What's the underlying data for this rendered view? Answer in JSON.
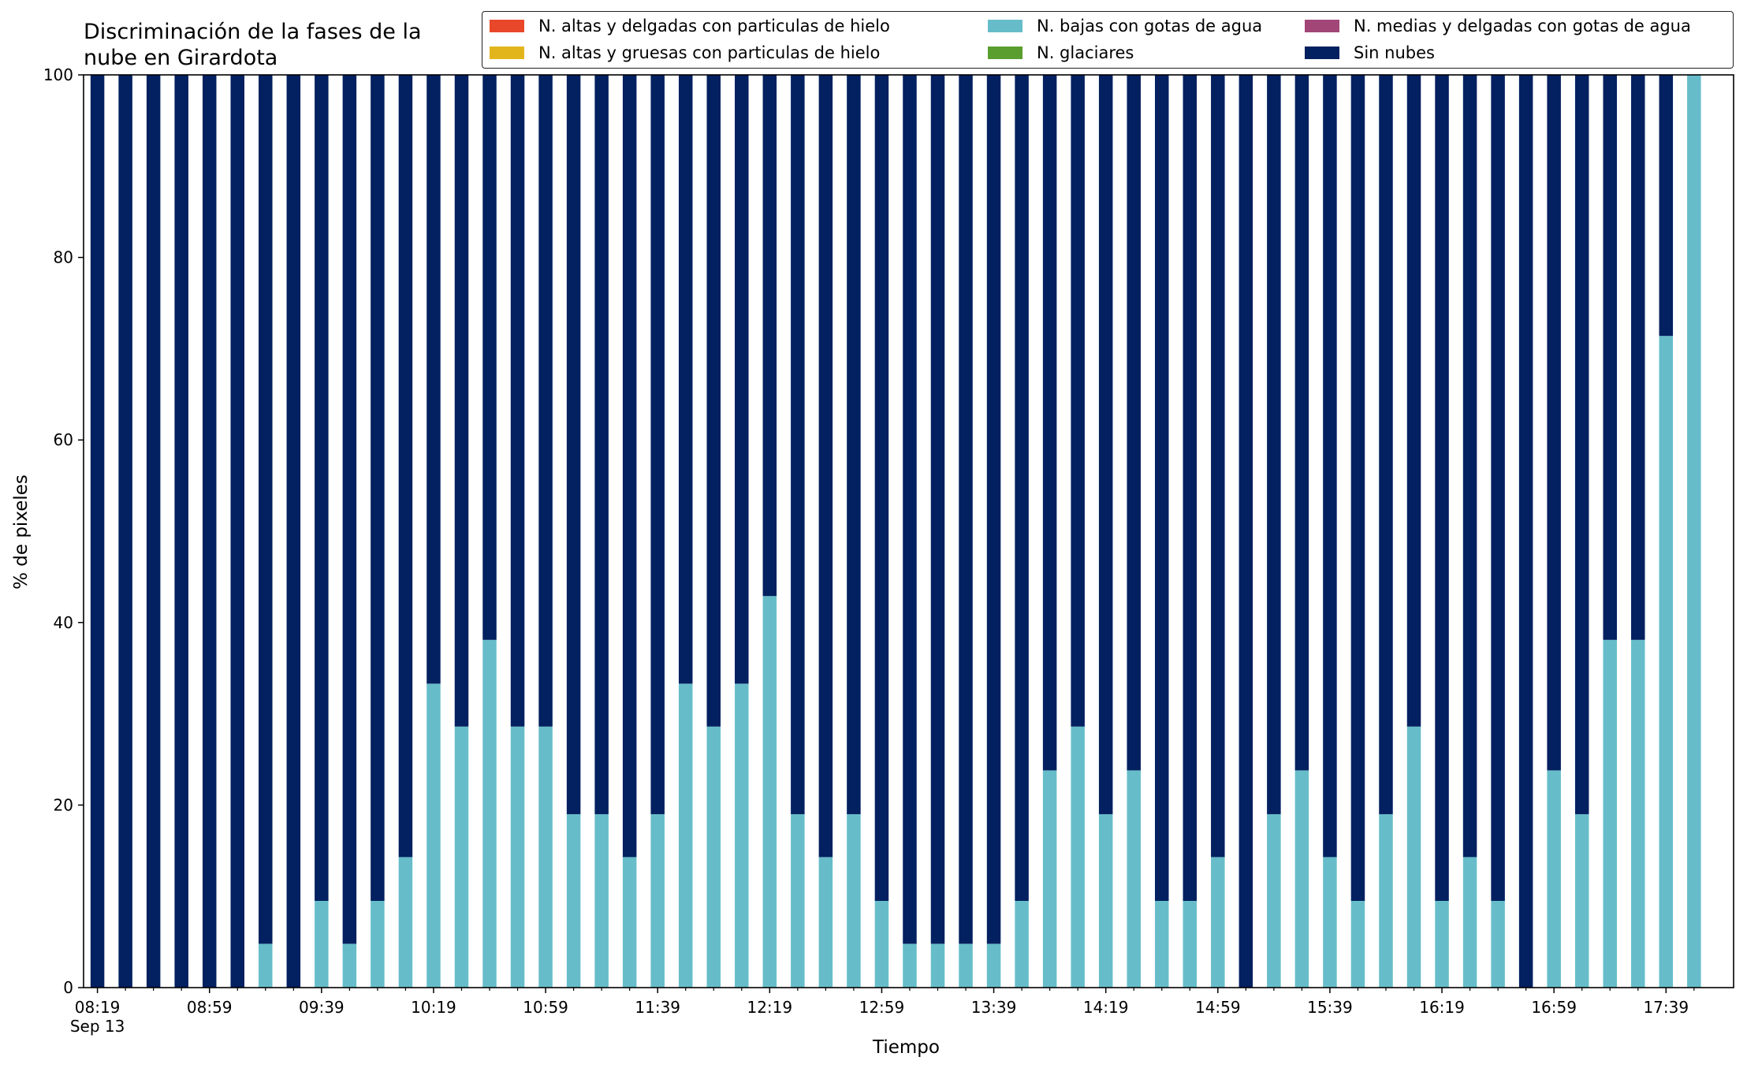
{
  "chart_data": {
    "type": "bar",
    "stacked": true,
    "title": "Discriminación de la fases de la nube en Girardota",
    "title_lines": [
      "Discriminación de la fases de la",
      "nube en Girardota"
    ],
    "xlabel": "Tiempo",
    "ylabel": "% de pixeles",
    "ylim": [
      0,
      100
    ],
    "yticks": [
      0,
      20,
      40,
      60,
      80,
      100
    ],
    "x_tick_labels": [
      {
        "index": 0,
        "label": "08:19",
        "sublabel": "Sep 13"
      },
      {
        "index": 4,
        "label": "08:59"
      },
      {
        "index": 8,
        "label": "09:39"
      },
      {
        "index": 12,
        "label": "10:19"
      },
      {
        "index": 16,
        "label": "10:59"
      },
      {
        "index": 20,
        "label": "11:39"
      },
      {
        "index": 24,
        "label": "12:19"
      },
      {
        "index": 28,
        "label": "12:59"
      },
      {
        "index": 32,
        "label": "13:39"
      },
      {
        "index": 36,
        "label": "14:19"
      },
      {
        "index": 40,
        "label": "14:59"
      },
      {
        "index": 44,
        "label": "15:39"
      },
      {
        "index": 48,
        "label": "16:19"
      },
      {
        "index": 52,
        "label": "16:59"
      },
      {
        "index": 56,
        "label": "17:39"
      }
    ],
    "categories": [
      "08:19",
      "08:29",
      "08:39",
      "08:49",
      "08:59",
      "09:09",
      "09:19",
      "09:29",
      "09:39",
      "09:49",
      "09:59",
      "10:09",
      "10:19",
      "10:29",
      "10:39",
      "10:49",
      "10:59",
      "11:09",
      "11:19",
      "11:29",
      "11:39",
      "11:49",
      "11:59",
      "12:09",
      "12:19",
      "12:29",
      "12:39",
      "12:49",
      "12:59",
      "13:09",
      "13:19",
      "13:29",
      "13:39",
      "13:49",
      "13:59",
      "14:09",
      "14:19",
      "14:29",
      "14:39",
      "14:49",
      "14:59",
      "15:09",
      "15:19",
      "15:29",
      "15:39",
      "15:49",
      "15:59",
      "16:09",
      "16:19",
      "16:29",
      "16:39",
      "16:49",
      "16:59",
      "17:09",
      "17:19",
      "17:29",
      "17:39",
      "17:49"
    ],
    "legend_position": "top-right",
    "series": [
      {
        "name": "N. altas y delgadas con particulas de hielo",
        "color": "#e8472a",
        "values": [
          0,
          0,
          0,
          0,
          0,
          0,
          0,
          0,
          0,
          0,
          0,
          0,
          0,
          0,
          0,
          0,
          0,
          0,
          0,
          0,
          0,
          0,
          0,
          0,
          0,
          0,
          0,
          0,
          0,
          0,
          0,
          0,
          0,
          0,
          0,
          0,
          0,
          0,
          0,
          0,
          0,
          0,
          0,
          0,
          0,
          0,
          0,
          0,
          0,
          0,
          0,
          0,
          0,
          0,
          0,
          0,
          0,
          0
        ]
      },
      {
        "name": "N. altas y gruesas con particulas de hielo",
        "color": "#e3b51c",
        "values": [
          0,
          0,
          0,
          0,
          0,
          0,
          0,
          0,
          0,
          0,
          0,
          0,
          0,
          0,
          0,
          0,
          0,
          0,
          0,
          0,
          0,
          0,
          0,
          0,
          0,
          0,
          0,
          0,
          0,
          0,
          0,
          0,
          0,
          0,
          0,
          0,
          0,
          0,
          0,
          0,
          0,
          0,
          0,
          0,
          0,
          0,
          0,
          0,
          0,
          0,
          0,
          0,
          0,
          0,
          0,
          0,
          0,
          0
        ]
      },
      {
        "name": "N. bajas con gotas de agua",
        "color": "#66bdc9",
        "values": [
          0,
          0,
          0,
          0,
          0,
          0,
          4.8,
          0,
          9.5,
          4.8,
          9.5,
          14.3,
          33.3,
          28.6,
          38.1,
          28.6,
          28.6,
          19.0,
          19.0,
          14.3,
          19.0,
          33.3,
          28.6,
          33.3,
          42.9,
          19.0,
          14.3,
          19.0,
          9.5,
          4.8,
          4.8,
          4.8,
          4.8,
          9.5,
          23.8,
          28.6,
          19.0,
          23.8,
          9.5,
          9.5,
          14.3,
          0,
          19.0,
          23.8,
          14.3,
          9.5,
          19.0,
          28.6,
          9.5,
          14.3,
          9.5,
          0,
          23.8,
          19.0,
          38.1,
          38.1,
          71.4,
          100
        ]
      },
      {
        "name": "N. glaciares",
        "color": "#5a9e2f",
        "values": [
          0,
          0,
          0,
          0,
          0,
          0,
          0,
          0,
          0,
          0,
          0,
          0,
          0,
          0,
          0,
          0,
          0,
          0,
          0,
          0,
          0,
          0,
          0,
          0,
          0,
          0,
          0,
          0,
          0,
          0,
          0,
          0,
          0,
          0,
          0,
          0,
          0,
          0,
          0,
          0,
          0,
          0,
          0,
          0,
          0,
          0,
          0,
          0,
          0,
          0,
          0,
          0,
          0,
          0,
          0,
          0,
          0,
          0
        ]
      },
      {
        "name": "N. medias y delgadas con gotas de agua",
        "color": "#a24577",
        "values": [
          0,
          0,
          0,
          0,
          0,
          0,
          0,
          0,
          0,
          0,
          0,
          0,
          0,
          0,
          0,
          0,
          0,
          0,
          0,
          0,
          0,
          0,
          0,
          0,
          0,
          0,
          0,
          0,
          0,
          0,
          0,
          0,
          0,
          0,
          0,
          0,
          0,
          0,
          0,
          0,
          0,
          0,
          0,
          0,
          0,
          0,
          0,
          0,
          0,
          0,
          0,
          0,
          0,
          0,
          0,
          0,
          0,
          0
        ]
      },
      {
        "name": "Sin nubes",
        "color": "#032060",
        "values": [
          100,
          100,
          100,
          100,
          100,
          100,
          95.2,
          100,
          90.5,
          95.2,
          90.5,
          85.7,
          66.7,
          71.4,
          61.9,
          71.4,
          71.4,
          81.0,
          81.0,
          85.7,
          81.0,
          66.7,
          71.4,
          66.7,
          57.1,
          81.0,
          85.7,
          81.0,
          90.5,
          95.2,
          95.2,
          95.2,
          95.2,
          90.5,
          76.2,
          71.4,
          81.0,
          76.2,
          90.5,
          90.5,
          85.7,
          100,
          81.0,
          76.2,
          85.7,
          90.5,
          81.0,
          71.4,
          90.5,
          85.7,
          90.5,
          100,
          76.2,
          81.0,
          61.9,
          61.9,
          28.6,
          0
        ]
      }
    ],
    "legend_order": [
      "N. altas y delgadas con particulas de hielo",
      "N. bajas con gotas de agua",
      "N. medias y delgadas con gotas de agua",
      "N. altas y gruesas con particulas de hielo",
      "N. glaciares",
      "Sin nubes"
    ],
    "stack_order": [
      "N. altas y delgadas con particulas de hielo",
      "N. altas y gruesas con particulas de hielo",
      "N. bajas con gotas de agua",
      "N. glaciares",
      "N. medias y delgadas con gotas de agua",
      "Sin nubes"
    ]
  }
}
